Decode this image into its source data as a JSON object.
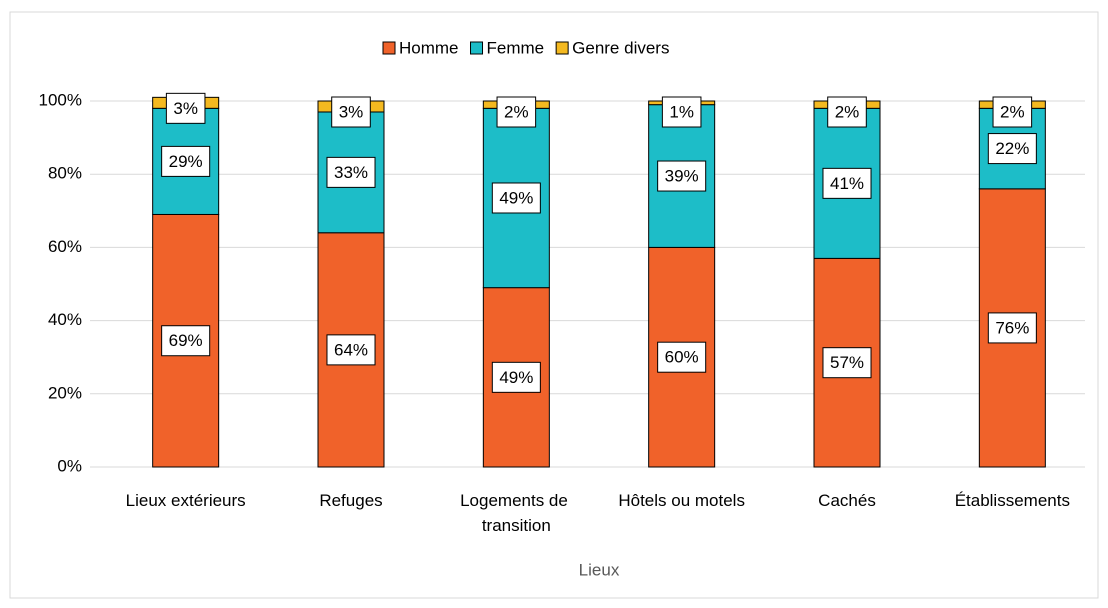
{
  "chart_data": {
    "type": "stacked_bar",
    "categories": [
      "Lieux extérieurs",
      "Refuges",
      "Logements de transition",
      "Hôtels ou motels",
      "Cachés",
      "Établissements"
    ],
    "series": [
      {
        "name": "Homme",
        "color": "#f0622a",
        "values": [
          69,
          64,
          49,
          60,
          57,
          76
        ],
        "value_labels": [
          "69%",
          "64%",
          "49%",
          "60%",
          "57%",
          "76%"
        ]
      },
      {
        "name": "Femme",
        "color": "#1dbdc8",
        "values": [
          29,
          33,
          49,
          39,
          41,
          22
        ],
        "value_labels": [
          "29%",
          "33%",
          "49%",
          "39%",
          "41%",
          "22%"
        ]
      },
      {
        "name": "Genre divers",
        "color": "#f4b920",
        "values": [
          3,
          3,
          2,
          1,
          2,
          2
        ],
        "value_labels": [
          "3%",
          "3%",
          "2%",
          "1%",
          "2%",
          "2%"
        ]
      }
    ],
    "x_label": "Lieux",
    "ylim": [
      0,
      100
    ],
    "yticks": [
      {
        "value": 0,
        "label": "0%"
      },
      {
        "value": 20,
        "label": "20%"
      },
      {
        "value": 40,
        "label": "40%"
      },
      {
        "value": 60,
        "label": "60%"
      },
      {
        "value": 80,
        "label": "80%"
      },
      {
        "value": 100,
        "label": "100%"
      }
    ],
    "grid": true,
    "legend": "top"
  }
}
